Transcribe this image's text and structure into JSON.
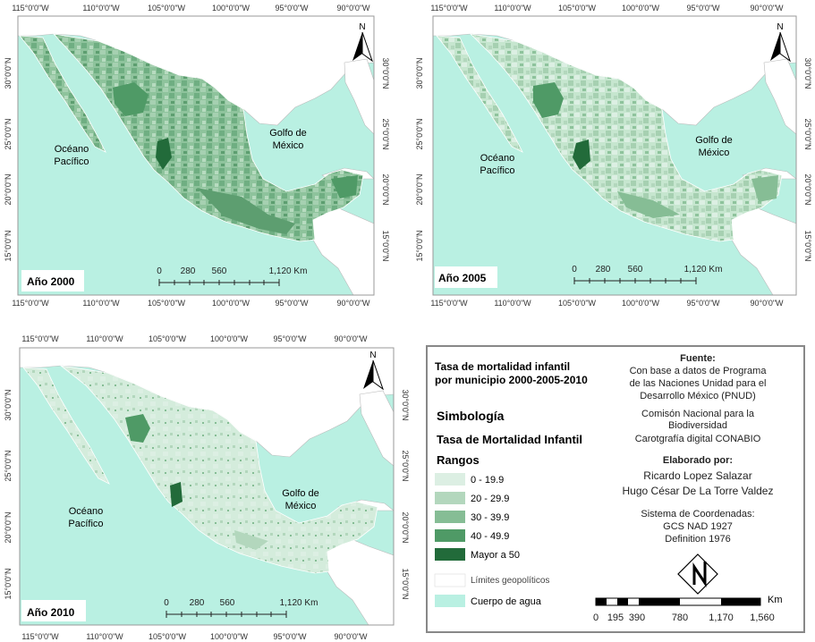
{
  "maps": [
    {
      "year_label": "Año 2000",
      "lon_ticks_top": [
        "115°0'0\"W",
        "110°0'0\"W",
        "105°0'0\"W",
        "100°0'0\"W",
        "95°0'0\"W",
        "90°0'0\"W"
      ],
      "lon_ticks_bottom": [
        "115°0'0\"W",
        "110°0'0\"W",
        "105°0'0\"W",
        "100°0'0\"W",
        "95°0'0\"W",
        "90°0'0\"W"
      ],
      "lat_ticks": [
        "30°0'0\"N",
        "25°0'0\"N",
        "20°0'0\"N",
        "15°0'0\"N"
      ],
      "pacific_label_1": "Océano",
      "pacific_label_2": "Pacífico",
      "gulf_label_1": "Golfo de",
      "gulf_label_2": "México",
      "north_label": "N",
      "scale_labels": [
        "0",
        "280",
        "560",
        "1,120 Km"
      ]
    },
    {
      "year_label": "Año 2005",
      "lon_ticks_top": [
        "115°0'0\"W",
        "110°0'0\"W",
        "105°0'0\"W",
        "100°0'0\"W",
        "95°0'0\"W",
        "90°0'0\"W"
      ],
      "lon_ticks_bottom": [
        "115°0'0\"W",
        "110°0'0\"W",
        "105°0'0\"W",
        "100°0'0\"W",
        "95°0'0\"W",
        "90°0'0\"W"
      ],
      "lat_ticks": [
        "30°0'0\"N",
        "25°0'0\"N",
        "20°0'0\"N",
        "15°0'0\"N"
      ],
      "pacific_label_1": "Océano",
      "pacific_label_2": "Pacífico",
      "gulf_label_1": "Golfo de",
      "gulf_label_2": "México",
      "north_label": "N",
      "scale_labels": [
        "0",
        "280",
        "560",
        "1,120 Km"
      ]
    },
    {
      "year_label": "Año 2010",
      "lon_ticks_top": [
        "115°0'0\"W",
        "110°0'0\"W",
        "105°0'0\"W",
        "100°0'0\"W",
        "95°0'0\"W",
        "90°0'0\"W"
      ],
      "lon_ticks_bottom": [
        "115°0'0\"W",
        "110°0'0\"W",
        "105°0'0\"W",
        "100°0'0\"W",
        "95°0'0\"W",
        "90°0'0\"W"
      ],
      "lat_ticks": [
        "30°0'0\"N",
        "25°0'0\"N",
        "20°0'0\"N",
        "15°0'0\"N"
      ],
      "pacific_label_1": "Océano",
      "pacific_label_2": "Pacífico",
      "gulf_label_1": "Golfo de",
      "gulf_label_2": "México",
      "north_label": "N",
      "scale_labels": [
        "0",
        "280",
        "560",
        "1,120 Km"
      ]
    }
  ],
  "legend": {
    "title_line1": "Tasa de mortalidad infantil",
    "title_line2": "por municipio 2000-2005-2010",
    "simbologia": "Simbología",
    "subtitle": "Tasa de Mortalidad Infantil",
    "rangos": "Rangos",
    "classes": [
      {
        "label": "0  - 19.9",
        "color": "#dcefe3"
      },
      {
        "label": "20 - 29.9",
        "color": "#b3d7bd"
      },
      {
        "label": "30 - 39.9",
        "color": "#86bd95"
      },
      {
        "label": "40 - 49.9",
        "color": "#4f9a66"
      },
      {
        "label": "Mayor a 50",
        "color": "#226b3a"
      }
    ],
    "limits_label": "Límites geopolíticos",
    "water_label": "Cuerpo de agua",
    "fuente_title": "Fuente:",
    "fuente_lines": [
      "Con base a datos de Programa",
      "de las Naciones Unidad para el",
      "Desarrollo México (PNUD)",
      "Comisón Nacional para la",
      "Biodiversidad",
      "Carotgrafía digital CONABIO"
    ],
    "elaborado_title": "Elaborado por:",
    "authors": [
      "Ricardo Lopez Salazar",
      "Hugo César De La Torre Valdez"
    ],
    "coord_lines": [
      "Sistema de Coordenadas:",
      "GCS NAD 1927",
      "Definition 1976"
    ],
    "scale_unit": "Km",
    "scale_labels": [
      "0",
      "195",
      "390",
      "780",
      "1,170",
      "1,560"
    ]
  },
  "colors": {
    "water": "#b9f0e2",
    "border_land": "#ffffff",
    "land_2000": "#8ec39c",
    "land_2005": "#c6e6cf",
    "land_2010": "#d4ecdc"
  }
}
